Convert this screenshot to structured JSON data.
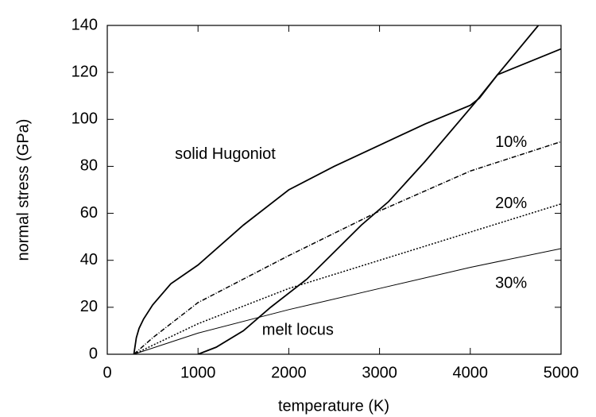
{
  "chart_data": {
    "type": "line",
    "xlabel": "temperature (K)",
    "ylabel": "normal stress (GPa)",
    "xlim": [
      0,
      5000
    ],
    "ylim": [
      0,
      140
    ],
    "xticks": [
      0,
      1000,
      2000,
      3000,
      4000,
      5000
    ],
    "yticks": [
      0,
      20,
      40,
      60,
      80,
      100,
      120,
      140
    ],
    "color": "#000000",
    "series": [
      {
        "x": [
          293,
          320,
          350,
          400,
          500,
          700,
          1000,
          1500,
          2000,
          2500,
          3000,
          3500,
          4000,
          4100,
          4300,
          5000
        ],
        "values": [
          0,
          7,
          11,
          15,
          21,
          30,
          38,
          55,
          70,
          80,
          89,
          98,
          106,
          109,
          119,
          130
        ],
        "dash": "none",
        "width": 1.8
      },
      {
        "x": [
          1000,
          1200,
          1500,
          1800,
          2200,
          2800,
          3100,
          3500,
          4050,
          4300,
          4750
        ],
        "values": [
          0,
          3,
          10,
          20,
          32,
          55,
          65,
          82,
          107,
          119,
          140
        ],
        "dash": "none",
        "width": 1.8
      },
      {
        "x": [
          293,
          500,
          1000,
          2000,
          3000,
          4000,
          5000
        ],
        "values": [
          0,
          7,
          22,
          42,
          61,
          78,
          90.5
        ],
        "dash": "6,2,1,2",
        "width": 1.5
      },
      {
        "x": [
          293,
          1000,
          2000,
          3000,
          4000,
          5000
        ],
        "values": [
          0,
          13,
          28,
          40,
          52,
          64
        ],
        "dash": "2,2",
        "width": 1.5
      },
      {
        "x": [
          293,
          1000,
          2000,
          3000,
          4000,
          5000
        ],
        "values": [
          0,
          9,
          19,
          28,
          37,
          45
        ],
        "dash": "none",
        "width": 1
      }
    ],
    "annotations": [
      {
        "text": "solid Hugoniot",
        "x": 1300,
        "y": 85
      },
      {
        "text": "10%",
        "x": 4450,
        "y": 90
      },
      {
        "text": "20%",
        "x": 4450,
        "y": 64
      },
      {
        "text": "30%",
        "x": 4450,
        "y": 30
      },
      {
        "text": "melt locus",
        "x": 2100,
        "y": 10
      }
    ]
  }
}
